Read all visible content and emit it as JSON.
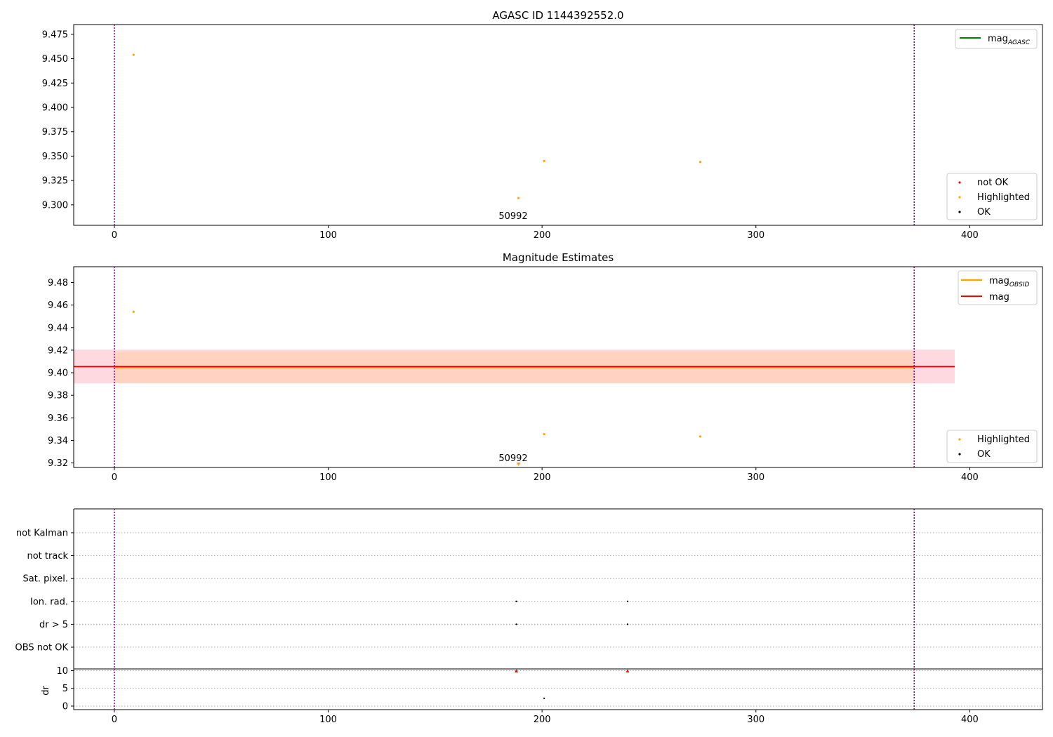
{
  "figure": {
    "panel1_title": "AGASC ID 1144392552.0",
    "panel2_title": "Magnitude Estimates",
    "obsid_label": "50992"
  },
  "colors": {
    "ok": "#000000",
    "highlighted": "#ffa500",
    "not_ok": "#ff0000",
    "mag_agasc": "#008000",
    "mag_obsid": "#ffa500",
    "mag": "#ff0000",
    "range_vline": "#800080",
    "band_outer": "#ffc0cb",
    "band_inner": "#ffd0b0"
  },
  "legends": {
    "panel1_lines": [
      {
        "name": "mag",
        "sub": "AGASC"
      }
    ],
    "panel1_points": [
      "not OK",
      "Highlighted",
      "OK"
    ],
    "panel2_lines": [
      {
        "name": "mag",
        "sub": "OBSID"
      },
      {
        "name": "mag",
        "sub": ""
      }
    ],
    "panel2_points": [
      "Highlighted",
      "OK"
    ]
  },
  "chart_data": [
    {
      "type": "scatter",
      "title": "AGASC ID 1144392552.0",
      "xlim": [
        -19,
        434
      ],
      "ylim": [
        9.279,
        9.485
      ],
      "xticks": [
        0,
        100,
        200,
        300,
        400
      ],
      "yticks": [
        9.3,
        9.325,
        9.35,
        9.375,
        9.4,
        9.425,
        9.45,
        9.475
      ],
      "ytick_labels": [
        "9.300",
        "9.325",
        "9.350",
        "9.375",
        "9.400",
        "9.425",
        "9.450",
        "9.475"
      ],
      "vlines": [
        0,
        374
      ],
      "series": [
        {
          "name": "not OK",
          "x": [],
          "y": []
        },
        {
          "name": "Highlighted",
          "x": [
            9,
            201,
            274
          ],
          "y": [
            9.454,
            9.345,
            9.344
          ]
        },
        {
          "name": "OK",
          "x": [
            189
          ],
          "y": [
            9.307
          ]
        }
      ],
      "annotation": {
        "text": "50992",
        "x": 187
      }
    },
    {
      "type": "scatter",
      "title": "Magnitude Estimates",
      "xlim": [
        -19,
        434
      ],
      "ylim": [
        9.316,
        9.494
      ],
      "xticks": [
        0,
        100,
        200,
        300,
        400
      ],
      "yticks": [
        9.32,
        9.34,
        9.36,
        9.38,
        9.4,
        9.42,
        9.44,
        9.46,
        9.48
      ],
      "ytick_labels": [
        "9.32",
        "9.34",
        "9.36",
        "9.38",
        "9.40",
        "9.42",
        "9.44",
        "9.46",
        "9.48"
      ],
      "vlines": [
        0,
        374
      ],
      "mag": 9.4055,
      "mag_band": [
        9.3905,
        9.4205
      ],
      "mag_band_x": [
        -19,
        393
      ],
      "mag_obsid": 9.405,
      "mag_obsid_band": [
        9.391,
        9.419
      ],
      "mag_obsid_x": [
        0,
        374
      ],
      "series": [
        {
          "name": "Highlighted",
          "x": [
            9,
            201,
            274
          ],
          "y": [
            9.454,
            9.3455,
            9.3435
          ]
        },
        {
          "name": "OK",
          "x": [],
          "y": []
        }
      ],
      "annotation": {
        "text": "50992",
        "x": 187
      }
    },
    {
      "type": "scatter",
      "title": "",
      "xlim": [
        -19,
        434
      ],
      "categories": [
        "not Kalman",
        "not track",
        "Sat. pixel.",
        "Ion. rad.",
        "dr > 5",
        "OBS not OK"
      ],
      "vlines": [
        0,
        374
      ],
      "flags": {
        "Ion. rad.": [
          188,
          240
        ],
        "dr > 5": [
          188,
          240
        ]
      }
    },
    {
      "type": "scatter",
      "title": "",
      "ylabel": "dr",
      "xlim": [
        -19,
        434
      ],
      "ylim": [
        -1,
        10.5
      ],
      "xticks": [
        0,
        100,
        200,
        300,
        400
      ],
      "yticks": [
        0,
        5,
        10
      ],
      "vlines": [
        0,
        374
      ],
      "not_ok": {
        "x": [
          188,
          240
        ],
        "y": [
          9.9,
          9.9
        ]
      },
      "series": [
        {
          "name": "dr",
          "x": [
            201
          ],
          "y": [
            2.2
          ]
        }
      ]
    }
  ]
}
